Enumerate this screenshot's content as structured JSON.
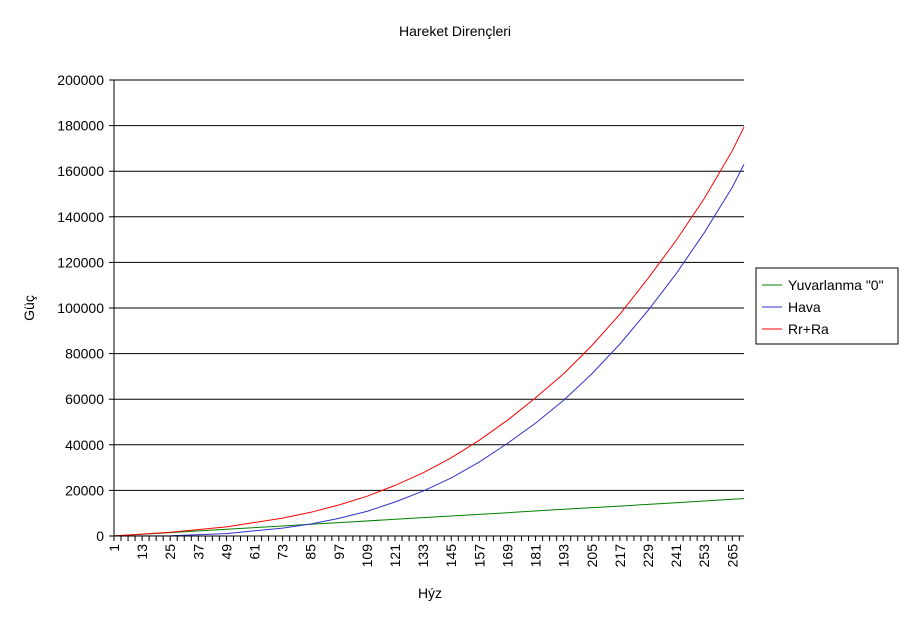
{
  "chart_data": {
    "type": "line",
    "title": "Hareket Dirençleri",
    "xlabel": "Hýz",
    "ylabel": "Güç",
    "x_range": [
      1,
      270
    ],
    "x_ticks": [
      "1",
      "13",
      "25",
      "37",
      "49",
      "61",
      "73",
      "85",
      "97",
      "109",
      "121",
      "133",
      "145",
      "157",
      "169",
      "181",
      "193",
      "205",
      "217",
      "229",
      "241",
      "253",
      "265"
    ],
    "ylim": [
      0,
      200000
    ],
    "y_ticks": [
      "200000",
      "180000",
      "160000",
      "140000",
      "120000",
      "100000",
      "80000",
      "60000",
      "40000",
      "20000",
      "0"
    ],
    "grid": true,
    "legend_position": "right",
    "series": [
      {
        "name": "Yuvarlanma \"0\"",
        "color": "#008000",
        "x": [
          1,
          25,
          49,
          73,
          85,
          97,
          121,
          145,
          169,
          193,
          217,
          241,
          265,
          270
        ],
        "y": [
          60,
          1500,
          2960,
          4400,
          5130,
          5860,
          7320,
          8780,
          10200,
          11700,
          13100,
          14600,
          16100,
          16400
        ]
      },
      {
        "name": "Hava",
        "color": "#3333cc",
        "x": [
          1,
          25,
          49,
          73,
          85,
          97,
          109,
          121,
          133,
          145,
          157,
          169,
          181,
          193,
          205,
          217,
          229,
          241,
          253,
          265,
          270
        ],
        "y": [
          0,
          140,
          1050,
          3450,
          5280,
          7700,
          10800,
          14900,
          19700,
          25500,
          32500,
          40600,
          49500,
          59500,
          71100,
          84200,
          98900,
          115000,
          133000,
          153000,
          163000
        ]
      },
      {
        "name": "Rr+Ra",
        "color": "#ff0000",
        "x": [
          1,
          25,
          49,
          73,
          85,
          97,
          109,
          121,
          133,
          145,
          157,
          169,
          181,
          193,
          205,
          217,
          229,
          241,
          253,
          265,
          270
        ],
        "y": [
          60,
          1640,
          4010,
          7850,
          10400,
          13600,
          17400,
          22200,
          27700,
          34300,
          42000,
          50800,
          60600,
          71200,
          83500,
          97300,
          113000,
          129600,
          148000,
          169000,
          179400
        ]
      }
    ]
  }
}
